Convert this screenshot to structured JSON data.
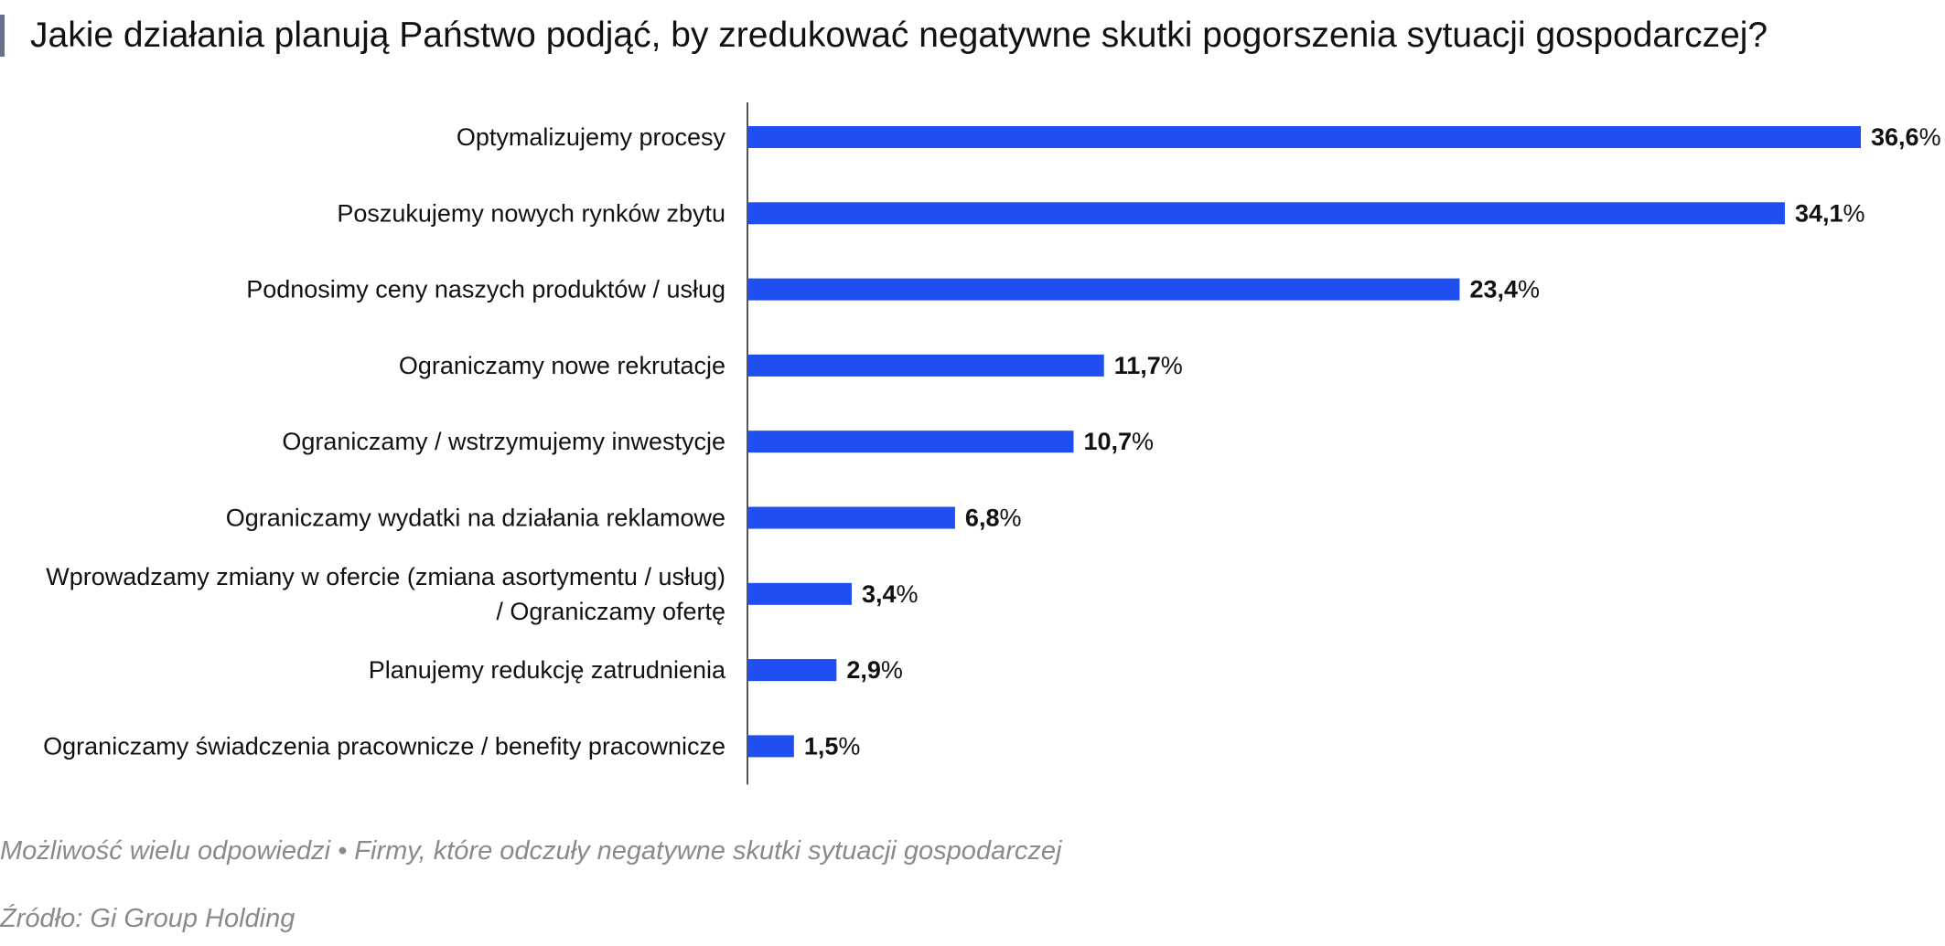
{
  "title": "Jakie działania planują Państwo podjąć, by zredukować negatywne skutki pogorszenia sytuacji gospodarczej?",
  "note": "Możliwość wielu odpowiedzi • Firmy, które odczuły negatywne skutki sytuacji gospodarczej",
  "source": "Źródło: Gi Group Holding",
  "colors": {
    "bar": "#1f4ff0",
    "accent": "#6b6f8c",
    "axis": "#555555",
    "text": "#111111",
    "footnote": "#8a8a8a"
  },
  "chart_data": {
    "type": "bar",
    "orientation": "horizontal",
    "unit": "%",
    "categories": [
      [
        "Optymalizujemy procesy"
      ],
      [
        "Poszukujemy nowych rynków zbytu"
      ],
      [
        "Podnosimy ceny naszych produktów / usług"
      ],
      [
        "Ograniczamy nowe rekrutacje"
      ],
      [
        "Ograniczamy / wstrzymujemy inwestycje"
      ],
      [
        "Ograniczamy wydatki na działania reklamowe"
      ],
      [
        "Wprowadzamy zmiany w ofercie (zmiana asortymentu / usług)",
        "/ Ograniczamy ofertę"
      ],
      [
        "Planujemy redukcję zatrudnienia"
      ],
      [
        "Ograniczamy świadczenia pracownicze / benefity pracownicze"
      ]
    ],
    "values": [
      36.6,
      34.1,
      23.4,
      11.7,
      10.7,
      6.8,
      3.4,
      2.9,
      1.5
    ],
    "value_labels": [
      "36,6",
      "34,1",
      "23,4",
      "11,7",
      "10,7",
      "6,8",
      "3,4",
      "2,9",
      "1,5"
    ],
    "xlim": [
      0,
      36.6
    ],
    "grid": false,
    "legend": "none"
  }
}
